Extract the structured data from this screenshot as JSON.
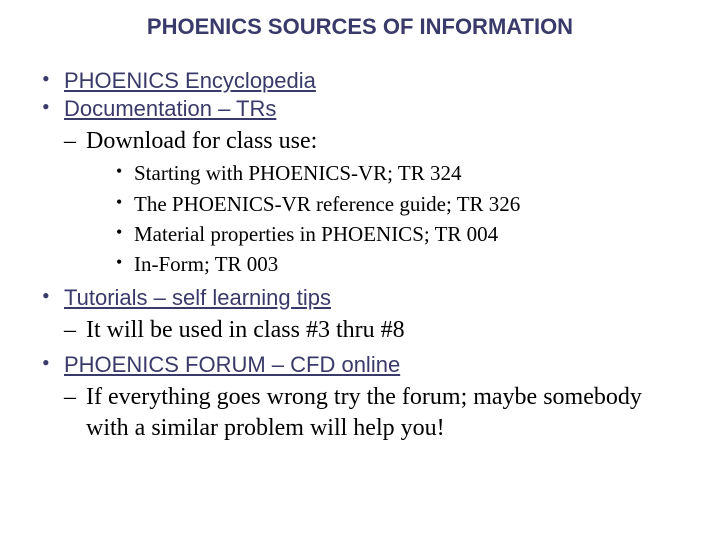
{
  "title": "PHOENICS SOURCES OF INFORMATION",
  "colors": {
    "heading": "#3a3a6a",
    "link": "#3a3a6a",
    "body": "#000000",
    "background": "#ffffff"
  },
  "fonts": {
    "heading_family": "Arial",
    "heading_size_pt": 22,
    "link_family": "Arial",
    "link_size_pt": 22,
    "body_family": "Times New Roman",
    "lvl2_size_pt": 24,
    "lvl3_size_pt": 21
  },
  "items": [
    {
      "label": "PHOENICS Encyclopedia"
    },
    {
      "label": "Documentation – TRs",
      "sub": {
        "text": "Download for class use:",
        "bullets": [
          "Starting with PHOENICS-VR; TR 324",
          "The PHOENICS-VR reference guide; TR 326",
          "Material properties in PHOENICS; TR 004",
          "In-Form; TR 003"
        ]
      }
    },
    {
      "label": "Tutorials – self learning tips",
      "sub": {
        "text": "It will be used in class #3 thru #8"
      }
    },
    {
      "label": "PHOENICS FORUM – CFD online",
      "sub": {
        "text": "If everything goes wrong try the forum; maybe somebody with a similar problem will help you!"
      }
    }
  ]
}
